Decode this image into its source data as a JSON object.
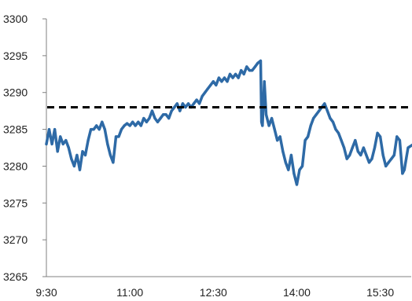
{
  "chart_data": {
    "type": "line",
    "title": "",
    "xlabel": "",
    "ylabel": "",
    "ylim": [
      3265,
      3300
    ],
    "xlim": [
      "9:30",
      "16:00"
    ],
    "yticks": [
      3265,
      3270,
      3275,
      3280,
      3285,
      3290,
      3295,
      3300
    ],
    "xticks": [
      "9:30",
      "11:00",
      "12:30",
      "14:00",
      "15:30"
    ],
    "grid": false,
    "legend": "none",
    "colors": {
      "line": "#2e6aa6",
      "reference": "#000000",
      "axis": "#808080"
    },
    "reference_line": {
      "y": 3288,
      "style": "dashed"
    },
    "series": [
      {
        "points": [
          [
            "9:30",
            3283.0
          ],
          [
            "9:33",
            3285.0
          ],
          [
            "9:36",
            3283.0
          ],
          [
            "9:39",
            3285.0
          ],
          [
            "9:42",
            3282.0
          ],
          [
            "9:45",
            3284.0
          ],
          [
            "9:48",
            3283.0
          ],
          [
            "9:51",
            3283.5
          ],
          [
            "9:54",
            3282.5
          ],
          [
            "9:57",
            3281.0
          ],
          [
            "10:00",
            3280.0
          ],
          [
            "10:03",
            3281.5
          ],
          [
            "10:06",
            3279.5
          ],
          [
            "10:09",
            3282.0
          ],
          [
            "10:12",
            3281.5
          ],
          [
            "10:15",
            3283.5
          ],
          [
            "10:18",
            3285.0
          ],
          [
            "10:21",
            3285.0
          ],
          [
            "10:24",
            3285.5
          ],
          [
            "10:27",
            3285.0
          ],
          [
            "10:30",
            3286.0
          ],
          [
            "10:33",
            3285.0
          ],
          [
            "10:36",
            3283.0
          ],
          [
            "10:39",
            3281.5
          ],
          [
            "10:42",
            3280.5
          ],
          [
            "10:45",
            3284.0
          ],
          [
            "10:48",
            3284.0
          ],
          [
            "10:51",
            3285.0
          ],
          [
            "10:54",
            3285.5
          ],
          [
            "10:57",
            3285.8
          ],
          [
            "11:00",
            3285.5
          ],
          [
            "11:03",
            3286.0
          ],
          [
            "11:06",
            3285.5
          ],
          [
            "11:09",
            3286.0
          ],
          [
            "11:12",
            3285.5
          ],
          [
            "11:15",
            3286.5
          ],
          [
            "11:18",
            3286.0
          ],
          [
            "11:21",
            3286.5
          ],
          [
            "11:24",
            3287.5
          ],
          [
            "11:27",
            3286.5
          ],
          [
            "11:30",
            3286.0
          ],
          [
            "11:33",
            3286.5
          ],
          [
            "11:36",
            3287.0
          ],
          [
            "11:39",
            3287.0
          ],
          [
            "11:42",
            3286.5
          ],
          [
            "11:45",
            3287.5
          ],
          [
            "11:48",
            3288.0
          ],
          [
            "11:51",
            3288.5
          ],
          [
            "11:54",
            3287.5
          ],
          [
            "11:57",
            3288.5
          ],
          [
            "12:00",
            3288.0
          ],
          [
            "12:03",
            3288.5
          ],
          [
            "12:06",
            3288.0
          ],
          [
            "12:09",
            3288.5
          ],
          [
            "12:12",
            3289.0
          ],
          [
            "12:15",
            3288.5
          ],
          [
            "12:18",
            3289.5
          ],
          [
            "12:21",
            3290.0
          ],
          [
            "12:24",
            3290.5
          ],
          [
            "12:27",
            3291.0
          ],
          [
            "12:30",
            3291.5
          ],
          [
            "12:33",
            3291.0
          ],
          [
            "12:36",
            3292.0
          ],
          [
            "12:39",
            3291.5
          ],
          [
            "12:42",
            3292.0
          ],
          [
            "12:45",
            3291.5
          ],
          [
            "12:48",
            3292.5
          ],
          [
            "12:51",
            3292.0
          ],
          [
            "12:54",
            3292.5
          ],
          [
            "12:57",
            3292.0
          ],
          [
            "13:00",
            3293.0
          ],
          [
            "13:03",
            3292.5
          ],
          [
            "13:06",
            3293.5
          ],
          [
            "13:09",
            3293.0
          ],
          [
            "13:12",
            3293.0
          ],
          [
            "13:15",
            3293.5
          ],
          [
            "13:18",
            3294.0
          ],
          [
            "13:21",
            3294.3
          ],
          [
            "13:22",
            3286.0
          ],
          [
            "13:23",
            3285.5
          ],
          [
            "13:25",
            3291.5
          ],
          [
            "13:27",
            3287.0
          ],
          [
            "13:30",
            3285.5
          ],
          [
            "13:33",
            3286.5
          ],
          [
            "13:36",
            3285.0
          ],
          [
            "13:39",
            3283.5
          ],
          [
            "13:42",
            3284.0
          ],
          [
            "13:45",
            3282.0
          ],
          [
            "13:48",
            3280.5
          ],
          [
            "13:51",
            3279.5
          ],
          [
            "13:54",
            3281.5
          ],
          [
            "13:57",
            3279.0
          ],
          [
            "14:00",
            3277.5
          ],
          [
            "14:03",
            3279.5
          ],
          [
            "14:06",
            3280.0
          ],
          [
            "14:09",
            3283.5
          ],
          [
            "14:12",
            3284.0
          ],
          [
            "14:15",
            3285.5
          ],
          [
            "14:18",
            3286.5
          ],
          [
            "14:21",
            3287.0
          ],
          [
            "14:24",
            3287.5
          ],
          [
            "14:27",
            3288.0
          ],
          [
            "14:30",
            3288.5
          ],
          [
            "14:33",
            3287.5
          ],
          [
            "14:36",
            3286.5
          ],
          [
            "14:39",
            3286.0
          ],
          [
            "14:42",
            3285.0
          ],
          [
            "14:45",
            3284.5
          ],
          [
            "14:48",
            3283.5
          ],
          [
            "14:51",
            3282.5
          ],
          [
            "14:54",
            3281.0
          ],
          [
            "14:57",
            3281.5
          ],
          [
            "15:00",
            3282.5
          ],
          [
            "15:03",
            3283.5
          ],
          [
            "15:06",
            3282.0
          ],
          [
            "15:09",
            3281.5
          ],
          [
            "15:12",
            3282.5
          ],
          [
            "15:15",
            3281.5
          ],
          [
            "15:18",
            3280.5
          ],
          [
            "15:21",
            3281.0
          ],
          [
            "15:24",
            3282.5
          ],
          [
            "15:27",
            3284.5
          ],
          [
            "15:30",
            3284.0
          ],
          [
            "15:33",
            3281.5
          ],
          [
            "15:36",
            3280.0
          ],
          [
            "15:39",
            3280.5
          ],
          [
            "15:42",
            3281.0
          ],
          [
            "15:45",
            3281.5
          ],
          [
            "15:48",
            3284.0
          ],
          [
            "15:51",
            3283.5
          ],
          [
            "15:54",
            3279.0
          ],
          [
            "15:56",
            3279.5
          ],
          [
            "15:58",
            3281.0
          ],
          [
            "16:00",
            3282.5
          ],
          [
            "16:06",
            3283.0
          ],
          [
            "16:12",
            3283.2
          ]
        ]
      }
    ]
  }
}
